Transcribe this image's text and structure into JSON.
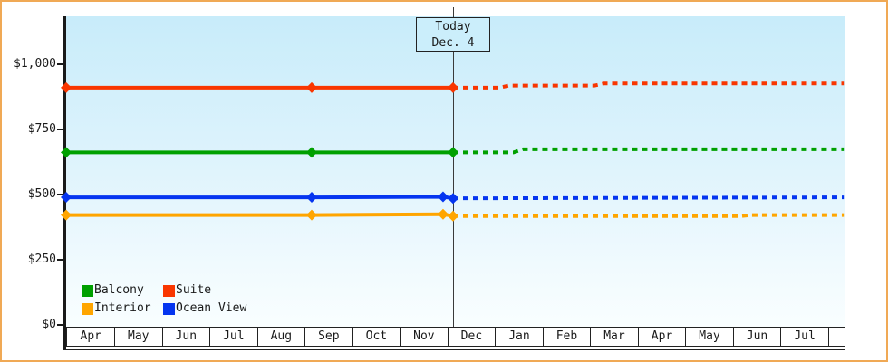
{
  "chart_data": {
    "type": "line",
    "title": "",
    "xlabel": "",
    "ylabel": "",
    "grid": false,
    "legend_position": "bottom-left",
    "y_axis": {
      "tick_values": [
        0,
        250,
        500,
        750,
        1000
      ],
      "tick_labels": [
        "$0",
        "$250",
        "$500",
        "$750",
        "$1,000"
      ],
      "ylim": [
        0,
        1190
      ]
    },
    "x_axis": {
      "month_labels": [
        "Apr",
        "May",
        "Jun",
        "Jul",
        "Aug",
        "Sep",
        "Oct",
        "Nov",
        "Dec",
        "Jan",
        "Feb",
        "Mar",
        "Apr",
        "May",
        "Jun",
        "Jul"
      ],
      "note": "x unit = months from Apr at left edge; solid = history, dashed = prediction"
    },
    "today": {
      "line1": "Today",
      "line2": "Dec. 4",
      "month_offset": 8.13
    },
    "series": [
      {
        "name": "Suite",
        "color": "#f93600",
        "solid": {
          "x": [
            0,
            5.16,
            8.13
          ],
          "y": [
            911,
            911,
            911
          ]
        },
        "dashed": {
          "x": [
            8.13,
            9.1,
            9.3,
            11.1,
            11.3,
            16.34
          ],
          "y": [
            911,
            911,
            919,
            919,
            927,
            927
          ]
        },
        "markers": {
          "x": [
            0,
            5.16,
            8.13
          ],
          "y": [
            911,
            911,
            911
          ]
        }
      },
      {
        "name": "Balcony",
        "color": "#00a000",
        "solid": {
          "x": [
            0,
            5.16,
            8.13
          ],
          "y": [
            662,
            662,
            662
          ]
        },
        "dashed": {
          "x": [
            8.13,
            9.4,
            9.6,
            16.34
          ],
          "y": [
            662,
            662,
            674,
            674
          ]
        },
        "markers": {
          "x": [
            0,
            5.16,
            8.13
          ],
          "y": [
            662,
            662,
            662
          ]
        }
      },
      {
        "name": "Ocean View",
        "color": "#0535f0",
        "solid": {
          "x": [
            0,
            5.16,
            7.92,
            8.13
          ],
          "y": [
            489,
            489,
            491,
            485
          ]
        },
        "dashed": {
          "x": [
            8.13,
            16.34
          ],
          "y": [
            485,
            489
          ]
        },
        "markers": {
          "x": [
            0,
            5.16,
            7.92,
            8.13
          ],
          "y": [
            489,
            489,
            491,
            485
          ]
        }
      },
      {
        "name": "Interior",
        "color": "#ffa500",
        "solid": {
          "x": [
            0,
            5.16,
            7.92,
            8.13
          ],
          "y": [
            421,
            421,
            424,
            417
          ]
        },
        "dashed": {
          "x": [
            8.13,
            14.2,
            14.4,
            16.34
          ],
          "y": [
            417,
            417,
            421,
            421
          ]
        },
        "markers": {
          "x": [
            0,
            5.16,
            7.92,
            8.13
          ],
          "y": [
            421,
            421,
            424,
            417
          ]
        }
      }
    ],
    "legend": [
      {
        "label": "Balcony",
        "color": "#00a000"
      },
      {
        "label": "Suite",
        "color": "#f93600"
      },
      {
        "label": "Interior",
        "color": "#ffa500"
      },
      {
        "label": "Ocean View",
        "color": "#0535f0"
      }
    ],
    "colors": {
      "frame_border": "#f0a955",
      "plot_bg_top": "#c8ecfa",
      "plot_bg_bottom": "#f9feff",
      "axis": "#1a1a1a",
      "today_line": "#3a3a3a"
    }
  }
}
